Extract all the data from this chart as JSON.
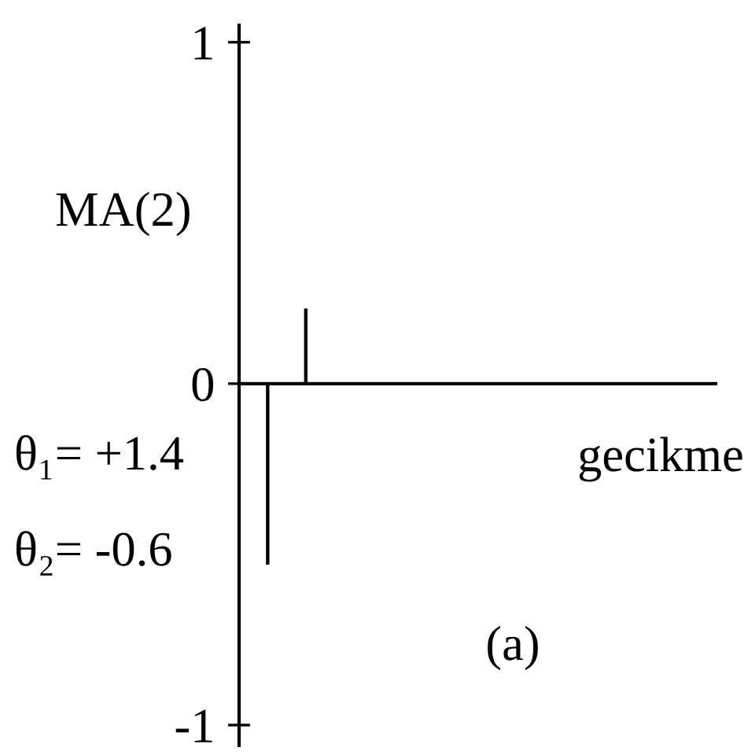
{
  "chart_data": {
    "type": "bar",
    "title": "MA(2)",
    "xlabel": "gecikme",
    "annotations": [
      "θ₁= +1.4",
      "θ₂= -0.6",
      "(a)"
    ],
    "categories": [
      null,
      null,
      null,
      null,
      null,
      null,
      null,
      null,
      null,
      null,
      null,
      null
    ],
    "values": [
      -0.53,
      0.22,
      null,
      null,
      null,
      null,
      null,
      null,
      null,
      null,
      null,
      null
    ],
    "color": "#000000",
    "ylim": [
      -1.06,
      1.05
    ],
    "yticks": [
      -1,
      0,
      1
    ],
    "tick_labels": "y"
  }
}
